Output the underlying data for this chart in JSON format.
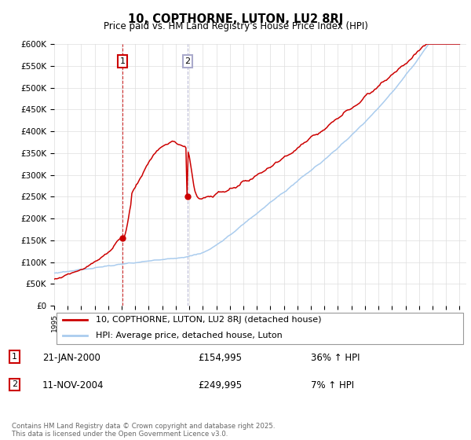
{
  "title": "10, COPTHORNE, LUTON, LU2 8RJ",
  "subtitle": "Price paid vs. HM Land Registry's House Price Index (HPI)",
  "ylabel_ticks": [
    "£0",
    "£50K",
    "£100K",
    "£150K",
    "£200K",
    "£250K",
    "£300K",
    "£350K",
    "£400K",
    "£450K",
    "£500K",
    "£550K",
    "£600K"
  ],
  "ytick_values": [
    0,
    50000,
    100000,
    150000,
    200000,
    250000,
    300000,
    350000,
    400000,
    450000,
    500000,
    550000,
    600000
  ],
  "red_line_color": "#cc0000",
  "blue_line_color": "#aaccee",
  "vline1_color": "#cc0000",
  "vline2_color": "#aaaacc",
  "legend_red_label": "10, COPTHORNE, LUTON, LU2 8RJ (detached house)",
  "legend_blue_label": "HPI: Average price, detached house, Luton",
  "annotation1_date": "21-JAN-2000",
  "annotation1_price": "£154,995",
  "annotation1_hpi": "36% ↑ HPI",
  "annotation2_date": "11-NOV-2004",
  "annotation2_price": "£249,995",
  "annotation2_hpi": "7% ↑ HPI",
  "footer": "Contains HM Land Registry data © Crown copyright and database right 2025.\nThis data is licensed under the Open Government Licence v3.0.",
  "bg_color": "#ffffff",
  "grid_color": "#dddddd"
}
